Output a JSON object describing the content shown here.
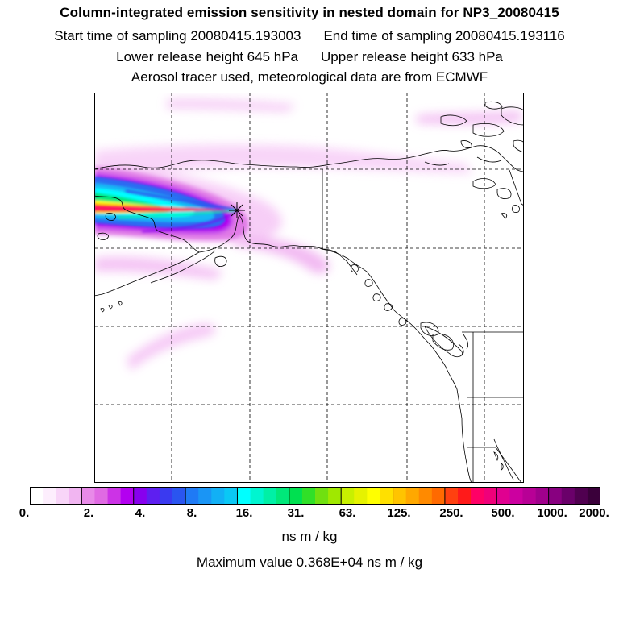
{
  "titles": {
    "line1": "Column-integrated emission sensitivity in nested domain for NP3_20080415",
    "start_label": "Start time of sampling 20080415.193003",
    "end_label": "End time of sampling 20080415.193116",
    "lower_label": "Lower release height  645 hPa",
    "upper_label": "Upper release height  633 hPa",
    "line4": "Aerosol tracer used, meteorological data are from ECMWF"
  },
  "colorbar": {
    "tick_labels": [
      "0.",
      "2.",
      "4.",
      "8.",
      "16.",
      "31.",
      "63.",
      "125.",
      "250.",
      "500.",
      "1000.",
      "2000."
    ],
    "colors": [
      "#ffffff",
      "#fdeefd",
      "#f8d5f8",
      "#f1b5f1",
      "#e88ae8",
      "#e06ae3",
      "#cc33e6",
      "#b300f0",
      "#8800ee",
      "#5e1ff0",
      "#3a3af0",
      "#2a55f0",
      "#1f7af5",
      "#1a95f5",
      "#12b0f5",
      "#0ac8f5",
      "#00ffff",
      "#00f5d0",
      "#00f0a6",
      "#00e87a",
      "#00e050",
      "#30e028",
      "#70e010",
      "#a0e800",
      "#c8f000",
      "#e6f200",
      "#ffff00",
      "#ffe000",
      "#ffc400",
      "#ffa800",
      "#ff8a00",
      "#ff6a00",
      "#ff4010",
      "#ff1a1a",
      "#ff0066",
      "#f0007a",
      "#e00090",
      "#cc00a0",
      "#b80096",
      "#a0008c",
      "#880080",
      "#6a006a",
      "#500050",
      "#3a003a"
    ],
    "units": "ns m / kg"
  },
  "max_value_text": "Maximum value  0.368E+04 ns m / kg"
}
